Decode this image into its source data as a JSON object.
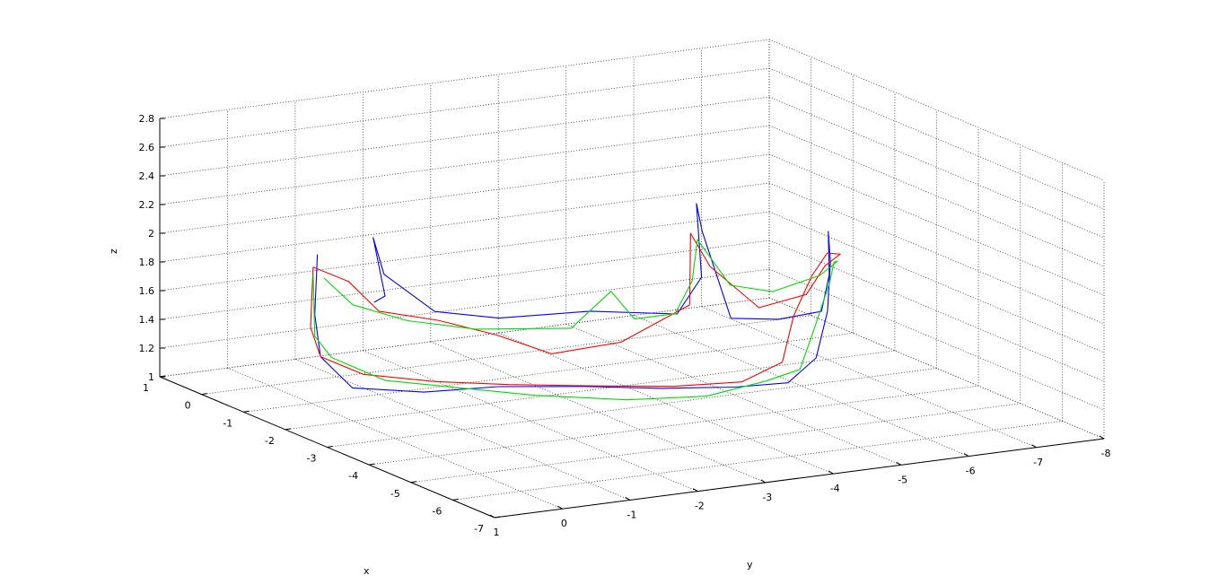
{
  "chart_data": {
    "type": "line3d",
    "title": "",
    "xlabel": "x",
    "ylabel": "y",
    "zlabel": "z",
    "xlim": [
      -7,
      1
    ],
    "ylim": [
      -8,
      1
    ],
    "zlim": [
      1,
      2.8
    ],
    "x_ticks": [
      "1",
      "0",
      "-1",
      "-2",
      "-3",
      "-4",
      "-5",
      "-6",
      "-7"
    ],
    "y_ticks": [
      "1",
      "0",
      "-1",
      "-2",
      "-3",
      "-4",
      "-5",
      "-6",
      "-7",
      "-8"
    ],
    "z_ticks": [
      "1",
      "1.2",
      "1.4",
      "1.6",
      "1.8",
      "2",
      "2.2",
      "2.4",
      "2.6",
      "2.8"
    ],
    "x_tick_values": [
      1,
      0,
      -1,
      -2,
      -3,
      -4,
      -5,
      -6,
      -7
    ],
    "y_tick_values": [
      1,
      0,
      -1,
      -2,
      -3,
      -4,
      -5,
      -6,
      -7,
      -8
    ],
    "z_tick_values": [
      1,
      1.2,
      1.4,
      1.6,
      1.8,
      2,
      2.2,
      2.4,
      2.6,
      2.8
    ],
    "grid": true,
    "series": [
      {
        "color": "#0000ff",
        "points": [
          [
            -0.5,
            -0.4,
            1.95
          ],
          [
            -0.6,
            -0.3,
            1.55
          ],
          [
            -0.9,
            -0.2,
            1.3
          ],
          [
            -1.5,
            -0.3,
            1.15
          ],
          [
            -2.4,
            -0.8,
            1.2
          ],
          [
            -3.2,
            -1.4,
            1.3
          ],
          [
            -4.0,
            -2.2,
            1.35
          ],
          [
            -4.7,
            -2.9,
            1.38
          ],
          [
            -5.3,
            -3.6,
            1.42
          ],
          [
            -5.6,
            -4.2,
            1.45
          ],
          [
            -5.3,
            -4.8,
            1.55
          ],
          [
            -4.6,
            -5.4,
            1.75
          ],
          [
            -3.7,
            -6.0,
            1.95
          ],
          [
            -3.0,
            -6.4,
            2.05
          ],
          [
            -2.7,
            -6.6,
            1.7
          ],
          [
            -3.0,
            -6.3,
            1.5
          ],
          [
            -3.1,
            -5.6,
            1.5
          ],
          [
            -3.1,
            -4.9,
            1.55
          ],
          [
            -2.9,
            -4.6,
            2.15
          ],
          [
            -2.6,
            -4.7,
            2.3
          ],
          [
            -2.4,
            -4.9,
            1.75
          ],
          [
            -2.3,
            -4.6,
            1.5
          ],
          [
            -2.0,
            -3.5,
            1.55
          ],
          [
            -1.6,
            -2.4,
            1.52
          ],
          [
            -1.2,
            -1.7,
            1.56
          ],
          [
            -0.8,
            -1.2,
            1.8
          ],
          [
            -0.7,
            -1.1,
            2.05
          ],
          [
            -0.5,
            -1.4,
            1.6
          ],
          [
            -0.4,
            -1.3,
            1.55
          ]
        ]
      },
      {
        "color": "#ff0000",
        "points": [
          [
            -0.4,
            -0.4,
            1.85
          ],
          [
            -0.5,
            -0.3,
            1.45
          ],
          [
            -0.9,
            -0.2,
            1.3
          ],
          [
            -1.6,
            -0.4,
            1.25
          ],
          [
            -2.5,
            -0.9,
            1.28
          ],
          [
            -3.3,
            -1.5,
            1.32
          ],
          [
            -4.1,
            -2.3,
            1.36
          ],
          [
            -4.8,
            -3.0,
            1.4
          ],
          [
            -5.3,
            -3.7,
            1.45
          ],
          [
            -5.3,
            -4.3,
            1.55
          ],
          [
            -4.6,
            -4.9,
            1.75
          ],
          [
            -3.9,
            -5.6,
            1.9
          ],
          [
            -3.3,
            -6.2,
            1.95
          ],
          [
            -2.8,
            -6.7,
            1.85
          ],
          [
            -2.6,
            -6.6,
            1.75
          ],
          [
            -2.8,
            -6.2,
            1.6
          ],
          [
            -2.8,
            -5.5,
            1.55
          ],
          [
            -2.6,
            -4.9,
            1.85
          ],
          [
            -2.3,
            -4.8,
            2.05
          ],
          [
            -2.6,
            -4.6,
            1.6
          ],
          [
            -2.9,
            -3.4,
            1.45
          ],
          [
            -2.7,
            -2.5,
            1.4
          ],
          [
            -2.2,
            -2.0,
            1.5
          ],
          [
            -1.6,
            -1.5,
            1.56
          ],
          [
            -1.0,
            -1.0,
            1.58
          ],
          [
            -0.6,
            -0.8,
            1.75
          ],
          [
            -0.4,
            -0.4,
            1.85
          ]
        ]
      },
      {
        "color": "#00dd00",
        "points": [
          [
            -0.4,
            -0.4,
            1.8
          ],
          [
            -0.6,
            -0.3,
            1.4
          ],
          [
            -1.0,
            -0.3,
            1.3
          ],
          [
            -1.8,
            -0.6,
            1.22
          ],
          [
            -2.7,
            -1.1,
            1.25
          ],
          [
            -3.6,
            -1.7,
            1.27
          ],
          [
            -4.5,
            -2.5,
            1.3
          ],
          [
            -5.1,
            -3.3,
            1.35
          ],
          [
            -5.4,
            -4.0,
            1.45
          ],
          [
            -5.4,
            -4.5,
            1.5
          ],
          [
            -4.8,
            -5.1,
            1.7
          ],
          [
            -4.0,
            -5.8,
            1.85
          ],
          [
            -3.3,
            -6.3,
            1.88
          ],
          [
            -2.9,
            -6.6,
            1.82
          ],
          [
            -2.8,
            -6.4,
            1.72
          ],
          [
            -2.8,
            -5.7,
            1.65
          ],
          [
            -2.6,
            -5.2,
            1.7
          ],
          [
            -2.3,
            -4.9,
            2.0
          ],
          [
            -2.5,
            -4.7,
            1.75
          ],
          [
            -2.9,
            -4.2,
            1.6
          ],
          [
            -2.9,
            -3.6,
            1.6
          ],
          [
            -2.5,
            -3.5,
            1.75
          ],
          [
            -2.2,
            -3.1,
            1.48
          ],
          [
            -1.7,
            -2.0,
            1.48
          ],
          [
            -1.2,
            -1.3,
            1.52
          ],
          [
            -0.7,
            -0.8,
            1.6
          ],
          [
            -0.5,
            -0.5,
            1.78
          ]
        ]
      }
    ]
  }
}
